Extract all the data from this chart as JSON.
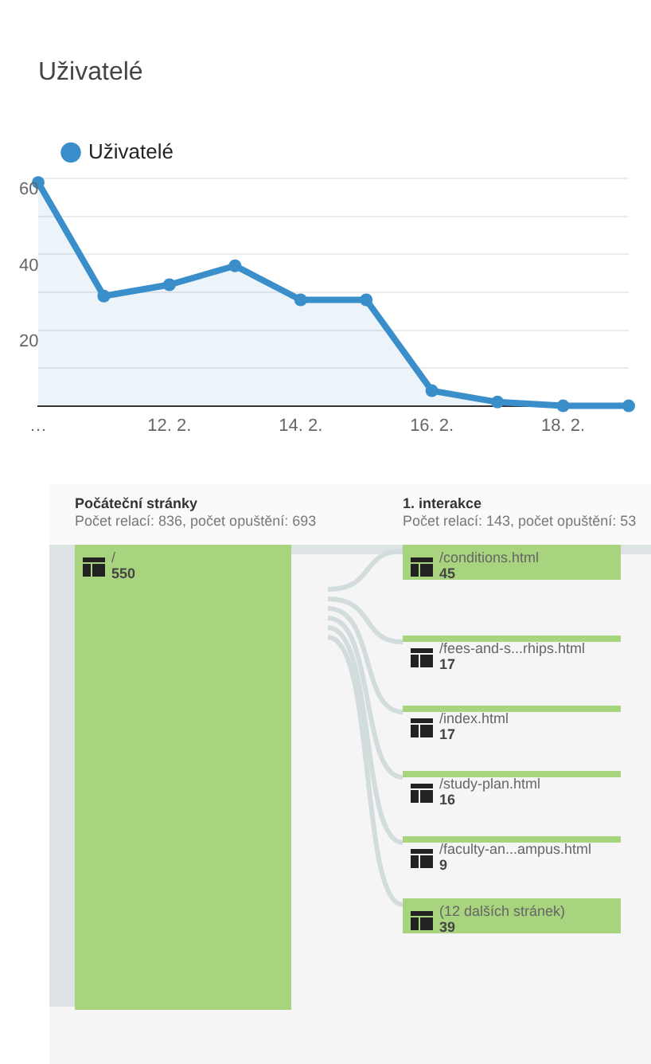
{
  "chart_data": [
    {
      "type": "area",
      "title": "Uživatelé",
      "categories": [
        "…",
        null,
        "12. 2.",
        null,
        "14. 2.",
        null,
        "16. 2.",
        null,
        "18. 2.",
        null
      ],
      "series": [
        {
          "name": "Uživatelé",
          "color": "#3a8fcb",
          "values": [
            59,
            29,
            32,
            37,
            28,
            28,
            4,
            1,
            0,
            0
          ]
        }
      ],
      "ylim": [
        0,
        60
      ],
      "yticks": [
        {
          "value": 0,
          "label": null
        },
        {
          "value": 10,
          "label": null
        },
        20,
        {
          "value": 30,
          "label": null
        },
        40,
        {
          "value": 50,
          "label": null
        },
        60
      ],
      "grid": "y",
      "legend": "top left",
      "marker": "circle",
      "line_style": "solid"
    },
    {
      "type": "other",
      "title": "Počáteční stránky",
      "subtitle": "Počet relací: 836, počet opuštění: 693",
      "categories": [
        "/"
      ],
      "values": [
        550
      ],
      "color": "#a8d37f",
      "data_labels": true
    },
    {
      "type": "other",
      "title": "1. interakce",
      "subtitle": "Počet relací: 143, počet opuštění: 53",
      "categories": [
        "/conditions.html",
        "/fees-and-s...rhips.html",
        "/index.html",
        "/study-plan.html",
        "/faculty-an...ampus.html",
        "(12 dalších stránek)"
      ],
      "values": [
        45,
        17,
        17,
        16,
        9,
        39
      ],
      "color": "#a8d37f",
      "data_labels": true
    }
  ]
}
